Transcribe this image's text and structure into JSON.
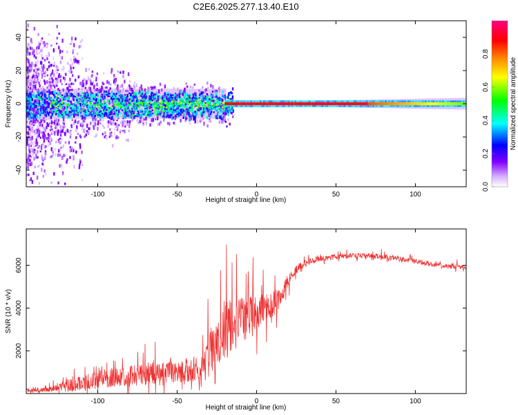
{
  "title": "C2E6.2025.277.13.40.E10",
  "chart_data": [
    {
      "type": "heatmap",
      "xlabel": "Height of straight line (km)",
      "ylabel": "Frequency (Hz)",
      "xlim": [
        -145,
        132
      ],
      "ylim": [
        -50,
        50
      ],
      "x_ticks": [
        -100,
        -50,
        0,
        50,
        100
      ],
      "y_ticks": [
        -40,
        -20,
        0,
        20,
        40
      ],
      "colorbar": {
        "label": "Normalized spectral amplitude",
        "range": [
          0,
          1
        ],
        "ticks": [
          0.0,
          0.2,
          0.4,
          0.6,
          0.8
        ],
        "tick_labels": [
          "0.0",
          "0.2",
          "0.4",
          "0.6",
          "0.8"
        ],
        "colors": [
          "#ffffff",
          "#c080ff",
          "#8000ff",
          "#0000ff",
          "#00ffff",
          "#00ff00",
          "#ffff00",
          "#ff8000",
          "#ff0000",
          "#ff0080"
        ]
      },
      "features": {
        "carrier_line_hz": 0,
        "broad_scatter_region_km": [
          -145,
          -20
        ],
        "narrow_line_region_km": [
          -20,
          132
        ]
      }
    },
    {
      "type": "line",
      "xlabel": "Height of straight line (km)",
      "ylabel": "SNR (10 * v/v)",
      "xlim": [
        -145,
        132
      ],
      "ylim": [
        0,
        7700
      ],
      "x_ticks": [
        -100,
        -50,
        0,
        50,
        100
      ],
      "y_ticks": [
        2000,
        4000,
        6000
      ],
      "color": "#ee3333",
      "series": [
        {
          "name": "SNR",
          "x": [
            -145,
            -130,
            -120,
            -110,
            -100,
            -90,
            -80,
            -70,
            -60,
            -50,
            -40,
            -35,
            -30,
            -25,
            -20,
            -15,
            -10,
            -5,
            0,
            5,
            10,
            15,
            20,
            25,
            30,
            40,
            50,
            60,
            70,
            80,
            90,
            100,
            110,
            120,
            132
          ],
          "y": [
            150,
            200,
            350,
            500,
            650,
            750,
            850,
            900,
            950,
            1000,
            1100,
            1300,
            1800,
            2500,
            3000,
            3200,
            3400,
            3600,
            3800,
            4000,
            4200,
            4400,
            5300,
            5800,
            6100,
            6300,
            6400,
            6450,
            6450,
            6400,
            6300,
            6200,
            6050,
            5950,
            5900
          ],
          "spread": [
            150,
            200,
            450,
            600,
            700,
            800,
            850,
            900,
            900,
            900,
            1000,
            1400,
            1800,
            2200,
            2400,
            2300,
            1800,
            1600,
            1400,
            1200,
            1100,
            900,
            500,
            350,
            250,
            200,
            200,
            200,
            200,
            200,
            200,
            200,
            180,
            170,
            160
          ]
        }
      ]
    }
  ]
}
